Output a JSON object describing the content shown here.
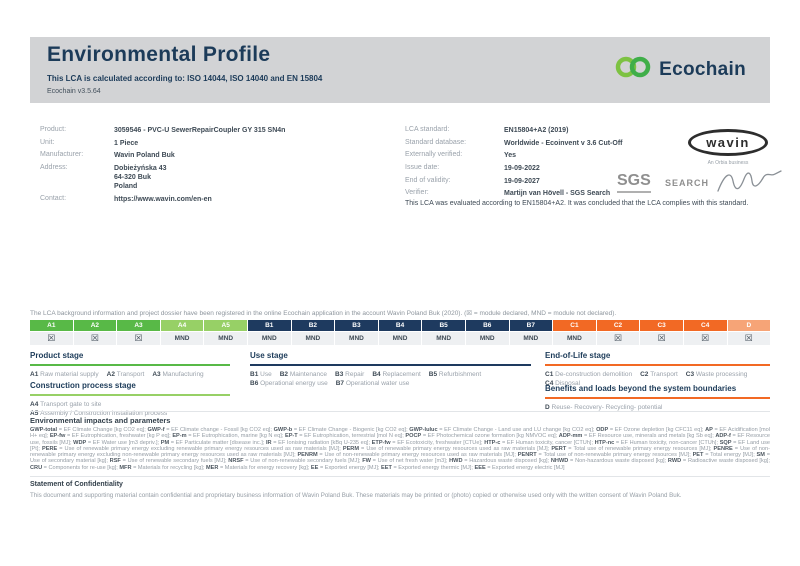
{
  "colors": {
    "header_band": "#d2d3d5",
    "navy": "#1c3b59",
    "green": "#58b947",
    "light_green": "#97d066",
    "navy_cell": "#1e3a5f",
    "orange": "#f26924",
    "light_orange": "#f6a477",
    "ecochain_green_left": "#7dc242",
    "ecochain_green_right": "#3fae49"
  },
  "header": {
    "title": "Environmental Profile",
    "subtitle": "This LCA is calculated according to: ISO 14044, ISO 14040 and EN 15804",
    "version": "Ecochain v3.5.64",
    "logo_text": "Ecochain"
  },
  "product_info": {
    "rows": [
      {
        "label": "Product:",
        "value": "3059546 - PVC-U SewerRepairCoupler GY 315 SN4n"
      },
      {
        "label": "Unit:",
        "value": "1 Piece"
      },
      {
        "label": "Manufacturer:",
        "value": "Wavin Poland Buk"
      },
      {
        "label": "Address:",
        "value": "Dobieżyńska 43\n64-320 Buk\nPoland"
      },
      {
        "label": "Contact:",
        "value": "https://www.wavin.com/en-en",
        "interactable": true
      }
    ]
  },
  "lca_info": {
    "rows": [
      {
        "label": "LCA standard:",
        "value": "EN15804+A2 (2019)"
      },
      {
        "label": "Standard database:",
        "value": "Worldwide - Ecoinvent v 3.6 Cut-Off"
      },
      {
        "label": "Externally verified:",
        "value": "Yes"
      },
      {
        "label": "Issue date:",
        "value": "19-09-2022"
      },
      {
        "label": "End of validity:",
        "value": "19-09-2027"
      },
      {
        "label": "Verifier:",
        "value": "Martijn van Hövell - SGS Search"
      }
    ],
    "evaluation_note": "This LCA was evaluated according to EN15804+A2. It was concluded that the LCA complies with this standard."
  },
  "logos": {
    "wavin": "wavin",
    "wavin_sub": "An Orbia business",
    "sgs": "SGS",
    "search": "SEARCH"
  },
  "registration_note": "The LCA background information and project dossier have been registered in the online Ecochain application in the account Wavin Poland Buk (2020). (☒ = module declared, MND = module not declared).",
  "module_table": {
    "columns": [
      {
        "code": "A1",
        "status": "☒",
        "color": "#58b947"
      },
      {
        "code": "A2",
        "status": "☒",
        "color": "#58b947"
      },
      {
        "code": "A3",
        "status": "☒",
        "color": "#58b947"
      },
      {
        "code": "A4",
        "status": "MND",
        "color": "#97d066"
      },
      {
        "code": "A5",
        "status": "MND",
        "color": "#97d066"
      },
      {
        "code": "B1",
        "status": "MND",
        "color": "#1e3a5f"
      },
      {
        "code": "B2",
        "status": "MND",
        "color": "#1e3a5f"
      },
      {
        "code": "B3",
        "status": "MND",
        "color": "#1e3a5f"
      },
      {
        "code": "B4",
        "status": "MND",
        "color": "#1e3a5f"
      },
      {
        "code": "B5",
        "status": "MND",
        "color": "#1e3a5f"
      },
      {
        "code": "B6",
        "status": "MND",
        "color": "#1e3a5f"
      },
      {
        "code": "B7",
        "status": "MND",
        "color": "#1e3a5f"
      },
      {
        "code": "C1",
        "status": "MND",
        "color": "#f26924"
      },
      {
        "code": "C2",
        "status": "☒",
        "color": "#f26924"
      },
      {
        "code": "C3",
        "status": "☒",
        "color": "#f26924"
      },
      {
        "code": "C4",
        "status": "☒",
        "color": "#f26924"
      },
      {
        "code": "D",
        "status": "☒",
        "color": "#f6a477"
      }
    ]
  },
  "stages": [
    {
      "title": "Product stage",
      "accent": "#58b947",
      "lines": [
        [
          {
            "code": "A1",
            "label": "Raw material supply"
          },
          {
            "code": "A2",
            "label": "Transport"
          },
          {
            "code": "A3",
            "label": "Manufacturing"
          }
        ]
      ]
    },
    {
      "title": "Construction process stage",
      "accent": "#97d066",
      "lines": [
        [
          {
            "code": "A4",
            "label": "Transport gate to site"
          }
        ],
        [
          {
            "code": "A5",
            "label": "Assembly / Construction installation process"
          }
        ]
      ]
    },
    {
      "title": "Use stage",
      "accent": "#1e3a5f",
      "lines": [
        [
          {
            "code": "B1",
            "label": "Use"
          },
          {
            "code": "B2",
            "label": "Maintenance"
          },
          {
            "code": "B3",
            "label": "Repair"
          },
          {
            "code": "B4",
            "label": "Replacement"
          },
          {
            "code": "B5",
            "label": "Refurbishment"
          }
        ],
        [
          {
            "code": "B6",
            "label": "Operational energy use"
          },
          {
            "code": "B7",
            "label": "Operational water use"
          }
        ]
      ]
    },
    {
      "title": "End-of-Life stage",
      "accent": "#f26924",
      "lines": [
        [
          {
            "code": "C1",
            "label": "De-construction demolition"
          },
          {
            "code": "C2",
            "label": "Transport"
          },
          {
            "code": "C3",
            "label": "Waste processing"
          }
        ],
        [
          {
            "code": "C4",
            "label": "Disposal"
          }
        ]
      ]
    },
    {
      "title": "Benefits and loads beyond the system boundaries",
      "accent": "#f26924",
      "lines": [
        [
          {
            "code": "D",
            "label": "Reuse- Recovery- Recycling- potential"
          }
        ]
      ]
    }
  ],
  "glossary_title": "Environmental impacts and parameters",
  "glossary": [
    {
      "t": "GWP-total",
      "d": "EF Climate Change [kg CO2 eq]"
    },
    {
      "t": "GWP-f",
      "d": "EF Climate change - Fossil [kg CO2 eq]"
    },
    {
      "t": "GWP-b",
      "d": "EF Climate Change - Biogenic [kg CO2 eq]"
    },
    {
      "t": "GWP-luluc",
      "d": "EF Climate Change - Land use and LU change [kg CO2 eq]"
    },
    {
      "t": "ODP",
      "d": "EF Ozone depletion [kg CFC11 eq]"
    },
    {
      "t": "AP",
      "d": "EF Acidification [mol H+ eq]"
    },
    {
      "t": "EP-fw",
      "d": "EF Eutrophication, freshwater [kg P eq]"
    },
    {
      "t": "EP-m",
      "d": "EF Eutrophication, marine [kg N eq]"
    },
    {
      "t": "EP-T",
      "d": "EF Eutrophication, terrestrial [mol N eq]"
    },
    {
      "t": "POCP",
      "d": "EF Photochemical ozone formation [kg NMVOC eq]"
    },
    {
      "t": "ADP-mm",
      "d": "EF Resource use, minerals and metals [kg Sb eq]"
    },
    {
      "t": "ADP-f",
      "d": "EF Resource use, fossils [MJ]"
    },
    {
      "t": "WDP",
      "d": "EF Water use [m3 depriv.]"
    },
    {
      "t": "PM",
      "d": "EF Particulate matter [disease inc.]"
    },
    {
      "t": "IR",
      "d": "EF Ionising radiation [kBq U-235 eq]"
    },
    {
      "t": "ETP-fw",
      "d": "EF Ecotoxicity, freshwater [CTUe]"
    },
    {
      "t": "HTP-c",
      "d": "EF Human toxicity, cancer [CTUh]"
    },
    {
      "t": "HTP-nc",
      "d": "EF Human toxicity, non-cancer [CTUh]"
    },
    {
      "t": "SQP",
      "d": "EF Land use [Pt]"
    },
    {
      "t": "PERE",
      "d": "Use of renewable primary energy excluding renewable primary energy resources used as raw materials [MJ]"
    },
    {
      "t": "PERM",
      "d": "Use of renewable primary energy resources used as raw materials [MJ]"
    },
    {
      "t": "PERT",
      "d": "Total use of renewable primary energy resources [MJ]"
    },
    {
      "t": "PENRE",
      "d": "Use of non-renewable primary energy excluding non-renewable primary energy resources used as raw materials [MJ]"
    },
    {
      "t": "PENRM",
      "d": "Use of non-renewable primary energy resources used as raw materials [MJ]"
    },
    {
      "t": "PENRT",
      "d": "Total use of non-renewable primary energy resources [MJ]"
    },
    {
      "t": "PET",
      "d": "Total energy [MJ]"
    },
    {
      "t": "SM",
      "d": "Use of secondary material [kg]"
    },
    {
      "t": "RSF",
      "d": "Use of renewable secondary fuels [MJ]"
    },
    {
      "t": "NRSF",
      "d": "Use of non-renewable secondary fuels [MJ]"
    },
    {
      "t": "FW",
      "d": "Use of net fresh water [m3]"
    },
    {
      "t": "HWD",
      "d": "Hazardous waste disposed [kg]"
    },
    {
      "t": "NHWD",
      "d": "Non-hazardous waste disposed [kg]"
    },
    {
      "t": "RWD",
      "d": "Radioactive waste disposed [kg]"
    },
    {
      "t": "CRU",
      "d": "Components for re-use [kg]"
    },
    {
      "t": "MFR",
      "d": "Materials for recycling [kg]"
    },
    {
      "t": "MER",
      "d": "Materials for energy recovery [kg]"
    },
    {
      "t": "EE",
      "d": "Exported energy [MJ]"
    },
    {
      "t": "EET",
      "d": "Exported energy thermic [MJ]"
    },
    {
      "t": "EEE",
      "d": "Exported energy electric [MJ]"
    }
  ],
  "confidentiality": {
    "title": "Statement of Confidentiality",
    "text": "This document and supporting material contain confidential and proprietary business information of Wavin Poland Buk. These materials may be printed or (photo) copied or otherwise used only with the written consent of Wavin Poland Buk."
  }
}
